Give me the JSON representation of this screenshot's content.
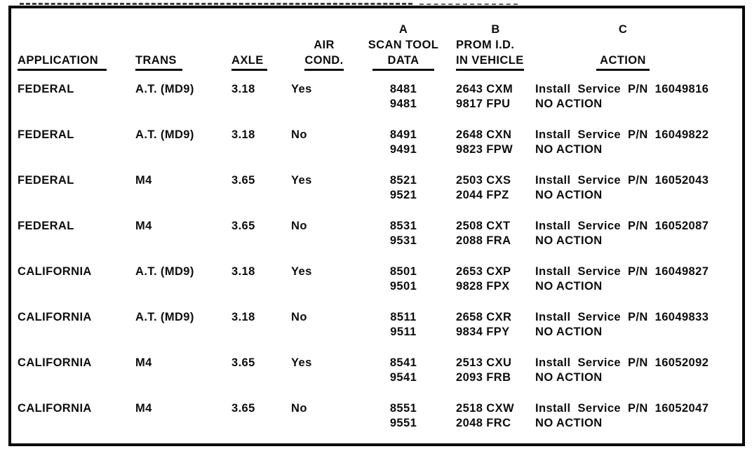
{
  "document": {
    "ink_color": "#0d0d0d",
    "paper_color": "#ffffff",
    "columns": {
      "application": {
        "label": "APPLICATION"
      },
      "trans": {
        "label": "TRANS"
      },
      "axle": {
        "label": "AXLE"
      },
      "air_cond": {
        "line1": "AIR",
        "line2": "COND."
      },
      "scan_tool": {
        "letter": "A",
        "line1": "SCAN TOOL",
        "line2": "DATA"
      },
      "prom_id": {
        "letter": "B",
        "line1": "PROM I.D.",
        "line2": "IN VEHICLE"
      },
      "action": {
        "letter": "C",
        "label": "ACTION"
      }
    }
  },
  "table": {
    "rows": [
      {
        "application": "FEDERAL",
        "trans": "A.T. (MD9)",
        "axle": "3.18",
        "air_cond": "Yes",
        "scan_tool_data": [
          "8481",
          "9481"
        ],
        "prom_id": [
          "2643 CXM",
          "9817 FPU"
        ],
        "action": [
          "Install Service P/N 16049816",
          "NO ACTION"
        ],
        "group_break": false
      },
      {
        "application": "FEDERAL",
        "trans": "A.T. (MD9)",
        "axle": "3.18",
        "air_cond": "No",
        "scan_tool_data": [
          "8491",
          "9491"
        ],
        "prom_id": [
          "2648 CXN",
          "9823 FPW"
        ],
        "action": [
          "Install Service P/N 16049822",
          "NO ACTION"
        ],
        "group_break": false
      },
      {
        "application": "FEDERAL",
        "trans": "M4",
        "axle": "3.65",
        "air_cond": "Yes",
        "scan_tool_data": [
          "8521",
          "9521"
        ],
        "prom_id": [
          "2503 CXS",
          "2044 FPZ"
        ],
        "action": [
          "Install Service P/N 16052043",
          "NO ACTION"
        ],
        "group_break": false
      },
      {
        "application": "FEDERAL",
        "trans": "M4",
        "axle": "3.65",
        "air_cond": "No",
        "scan_tool_data": [
          "8531",
          "9531"
        ],
        "prom_id": [
          "2508 CXT",
          "2088 FRA"
        ],
        "action": [
          "Install Service P/N 16052087",
          "NO ACTION"
        ],
        "group_break": false
      },
      {
        "application": "CALIFORNIA",
        "trans": "A.T. (MD9)",
        "axle": "3.18",
        "air_cond": "Yes",
        "scan_tool_data": [
          "8501",
          "9501"
        ],
        "prom_id": [
          "2653 CXP",
          "9828 FPX"
        ],
        "action": [
          "Install Service P/N 16049827",
          "NO ACTION"
        ],
        "group_break": true
      },
      {
        "application": "CALIFORNIA",
        "trans": "A.T. (MD9)",
        "axle": "3.18",
        "air_cond": "No",
        "scan_tool_data": [
          "8511",
          "9511"
        ],
        "prom_id": [
          "2658 CXR",
          "9834 FPY"
        ],
        "action": [
          "Install Service P/N 16049833",
          "NO ACTION"
        ],
        "group_break": false
      },
      {
        "application": "CALIFORNIA",
        "trans": "M4",
        "axle": "3.65",
        "air_cond": "Yes",
        "scan_tool_data": [
          "8541",
          "9541"
        ],
        "prom_id": [
          "2513 CXU",
          "2093 FRB"
        ],
        "action": [
          "Install Service P/N 16052092",
          "NO ACTION"
        ],
        "group_break": false
      },
      {
        "application": "CALIFORNIA",
        "trans": "M4",
        "axle": "3.65",
        "air_cond": "No",
        "scan_tool_data": [
          "8551",
          "9551"
        ],
        "prom_id": [
          "2518 CXW",
          "2048 FRC"
        ],
        "action": [
          "Install Service P/N 16052047",
          "NO ACTION"
        ],
        "group_break": false
      }
    ]
  }
}
